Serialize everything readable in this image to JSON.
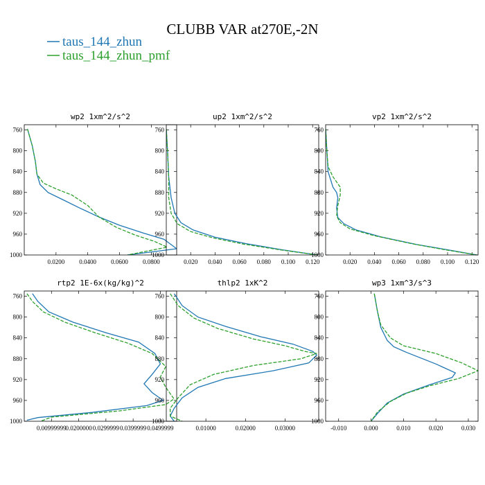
{
  "figure": {
    "title": "CLUBB VAR at270E,-2N",
    "legend": [
      {
        "label": "taus_144_zhun",
        "color": "#1f77b4",
        "dash": "solid"
      },
      {
        "label": "taus_144_zhun_pmf",
        "color": "#2ca02c",
        "dash": "dashed"
      }
    ]
  },
  "chart_data": [
    {
      "type": "line",
      "title": "wp2  1xm^2/s^2",
      "ylim": [
        1000,
        750
      ],
      "yticks": [
        760,
        800,
        840,
        880,
        920,
        960,
        1000
      ],
      "xlim": [
        0.0,
        0.096
      ],
      "xticks": [
        0.02,
        0.04,
        0.06,
        0.08
      ],
      "xtick_labels": [
        "0.0200",
        "0.0400",
        "0.0600",
        "0.0800"
      ],
      "series": [
        {
          "name": "taus_144_zhun",
          "color": "#1f77b4",
          "dash": "solid",
          "points": [
            [
              0.002,
              758
            ],
            [
              0.005,
              790
            ],
            [
              0.007,
              820
            ],
            [
              0.008,
              845
            ],
            [
              0.01,
              865
            ],
            [
              0.015,
              880
            ],
            [
              0.025,
              895
            ],
            [
              0.035,
              910
            ],
            [
              0.047,
              927
            ],
            [
              0.06,
              943
            ],
            [
              0.075,
              958
            ],
            [
              0.088,
              970
            ],
            [
              0.096,
              988
            ],
            [
              0.065,
              1000
            ]
          ]
        },
        {
          "name": "taus_144_zhun_pmf",
          "color": "#2ca02c",
          "dash": "dashed",
          "points": [
            [
              0.002,
              758
            ],
            [
              0.005,
              790
            ],
            [
              0.007,
              820
            ],
            [
              0.008,
              845
            ],
            [
              0.012,
              862
            ],
            [
              0.02,
              873
            ],
            [
              0.03,
              885
            ],
            [
              0.04,
              905
            ],
            [
              0.047,
              927
            ],
            [
              0.058,
              947
            ],
            [
              0.07,
              962
            ],
            [
              0.082,
              974
            ],
            [
              0.09,
              985
            ],
            [
              0.065,
              1000
            ]
          ]
        }
      ]
    },
    {
      "type": "line",
      "title": "up2  1xm^2/s^2",
      "ylim": [
        1000,
        750
      ],
      "yticks": [
        760,
        800,
        840,
        880,
        920,
        960,
        1000
      ],
      "xlim": [
        0.0,
        0.125
      ],
      "xticks": [
        0.02,
        0.04,
        0.06,
        0.08,
        0.1,
        0.12
      ],
      "xtick_labels": [
        "0.020",
        "0.040",
        "0.060",
        "0.080",
        "0.100",
        "0.120"
      ],
      "series": [
        {
          "name": "taus_144_zhun",
          "color": "#1f77b4",
          "dash": "solid",
          "points": [
            [
              0.0,
              758
            ],
            [
              0.001,
              800
            ],
            [
              0.002,
              850
            ],
            [
              0.004,
              890
            ],
            [
              0.007,
              920
            ],
            [
              0.012,
              938
            ],
            [
              0.022,
              952
            ],
            [
              0.04,
              966
            ],
            [
              0.065,
              978
            ],
            [
              0.095,
              990
            ],
            [
              0.124,
              1000
            ]
          ]
        },
        {
          "name": "taus_144_zhun_pmf",
          "color": "#2ca02c",
          "dash": "dashed",
          "points": [
            [
              0.0,
              758
            ],
            [
              0.001,
              800
            ],
            [
              0.002,
              850
            ],
            [
              0.002,
              890
            ],
            [
              0.004,
              920
            ],
            [
              0.009,
              940
            ],
            [
              0.02,
              955
            ],
            [
              0.038,
              967
            ],
            [
              0.063,
              979
            ],
            [
              0.093,
              990
            ],
            [
              0.124,
              1000
            ]
          ]
        }
      ]
    },
    {
      "type": "line",
      "title": "vp2  1xm^2/s^2",
      "ylim": [
        1000,
        750
      ],
      "yticks": [
        760,
        800,
        840,
        880,
        920,
        960,
        1000
      ],
      "xlim": [
        0.0,
        0.125
      ],
      "xticks": [
        0.02,
        0.04,
        0.06,
        0.08,
        0.1,
        0.12
      ],
      "xtick_labels": [
        "0.020",
        "0.040",
        "0.060",
        "0.080",
        "0.100",
        "0.120"
      ],
      "series": [
        {
          "name": "taus_144_zhun",
          "color": "#1f77b4",
          "dash": "solid",
          "points": [
            [
              0.0,
              758
            ],
            [
              0.001,
              800
            ],
            [
              0.002,
              840
            ],
            [
              0.006,
              870
            ],
            [
              0.009,
              880
            ],
            [
              0.01,
              890
            ],
            [
              0.009,
              910
            ],
            [
              0.01,
              928
            ],
            [
              0.015,
              940
            ],
            [
              0.025,
              952
            ],
            [
              0.045,
              965
            ],
            [
              0.075,
              980
            ],
            [
              0.1,
              990
            ],
            [
              0.124,
              1000
            ]
          ]
        },
        {
          "name": "taus_144_zhun_pmf",
          "color": "#2ca02c",
          "dash": "dashed",
          "points": [
            [
              0.0,
              758
            ],
            [
              0.001,
              800
            ],
            [
              0.002,
              830
            ],
            [
              0.006,
              850
            ],
            [
              0.012,
              870
            ],
            [
              0.012,
              885
            ],
            [
              0.01,
              905
            ],
            [
              0.009,
              925
            ],
            [
              0.012,
              938
            ],
            [
              0.02,
              950
            ],
            [
              0.04,
              963
            ],
            [
              0.07,
              978
            ],
            [
              0.098,
              990
            ],
            [
              0.124,
              1000
            ]
          ]
        }
      ]
    },
    {
      "type": "line",
      "title": "rtp2  1E-6x(kg/kg)^2",
      "ylim": [
        1000,
        750
      ],
      "yticks": [
        760,
        800,
        840,
        880,
        920,
        960,
        1000
      ],
      "xlim": [
        0.0,
        0.056
      ],
      "xticks": [
        0.01,
        0.02,
        0.03,
        0.04,
        0.05
      ],
      "xtick_labels": [
        "0.00999999",
        "0.0200000",
        "0.0299999",
        "0.0399999",
        "0.0499999"
      ],
      "series": [
        {
          "name": "taus_144_zhun",
          "color": "#1f77b4",
          "dash": "solid",
          "points": [
            [
              0.003,
              755
            ],
            [
              0.005,
              770
            ],
            [
              0.009,
              790
            ],
            [
              0.018,
              810
            ],
            [
              0.03,
              830
            ],
            [
              0.042,
              848
            ],
            [
              0.048,
              870
            ],
            [
              0.05,
              890
            ],
            [
              0.047,
              910
            ],
            [
              0.044,
              928
            ],
            [
              0.047,
              945
            ],
            [
              0.051,
              960
            ],
            [
              0.045,
              970
            ],
            [
              0.025,
              983
            ],
            [
              0.005,
              993
            ],
            [
              0.001,
              998
            ]
          ]
        },
        {
          "name": "taus_144_zhun_pmf",
          "color": "#2ca02c",
          "dash": "dashed",
          "points": [
            [
              0.001,
              755
            ],
            [
              0.003,
              770
            ],
            [
              0.007,
              790
            ],
            [
              0.015,
              810
            ],
            [
              0.026,
              830
            ],
            [
              0.038,
              850
            ],
            [
              0.047,
              870
            ],
            [
              0.052,
              895
            ],
            [
              0.05,
              915
            ],
            [
              0.052,
              935
            ],
            [
              0.055,
              957
            ],
            [
              0.052,
              968
            ],
            [
              0.035,
              980
            ],
            [
              0.01,
              992
            ],
            [
              0.006,
              1000
            ]
          ]
        }
      ]
    },
    {
      "type": "line",
      "title": "thlp2  1xK^2",
      "ylim": [
        1000,
        750
      ],
      "yticks": [
        760,
        800,
        840,
        880,
        920,
        960,
        1000
      ],
      "xlim": [
        0.0,
        0.0385
      ],
      "xticks": [
        0.01,
        0.02,
        0.03
      ],
      "xtick_labels": [
        "0.01000",
        "0.02000",
        "0.03000"
      ],
      "series": [
        {
          "name": "taus_144_zhun",
          "color": "#1f77b4",
          "dash": "solid",
          "points": [
            [
              0.002,
              755
            ],
            [
              0.004,
              778
            ],
            [
              0.008,
              800
            ],
            [
              0.015,
              818
            ],
            [
              0.024,
              838
            ],
            [
              0.032,
              852
            ],
            [
              0.037,
              866
            ],
            [
              0.038,
              873
            ],
            [
              0.036,
              888
            ],
            [
              0.027,
              903
            ],
            [
              0.015,
              918
            ],
            [
              0.008,
              935
            ],
            [
              0.004,
              955
            ],
            [
              0.002,
              975
            ],
            [
              0.001,
              990
            ],
            [
              0.002,
              1000
            ]
          ]
        },
        {
          "name": "taus_144_zhun_pmf",
          "color": "#2ca02c",
          "dash": "dashed",
          "points": [
            [
              0.001,
              755
            ],
            [
              0.003,
              778
            ],
            [
              0.007,
              802
            ],
            [
              0.013,
              822
            ],
            [
              0.022,
              842
            ],
            [
              0.03,
              855
            ],
            [
              0.035,
              866
            ],
            [
              0.038,
              870
            ],
            [
              0.034,
              880
            ],
            [
              0.022,
              893
            ],
            [
              0.012,
              910
            ],
            [
              0.006,
              930
            ],
            [
              0.003,
              955
            ],
            [
              0.001,
              975
            ],
            [
              0.001,
              990
            ],
            [
              0.004,
              1000
            ]
          ]
        }
      ]
    },
    {
      "type": "line",
      "title": "wp3  1xm^3/s^3",
      "ylim": [
        1000,
        750
      ],
      "yticks": [
        760,
        800,
        840,
        880,
        920,
        960,
        1000
      ],
      "xlim": [
        -0.014,
        0.033
      ],
      "xticks": [
        -0.01,
        0.0,
        0.01,
        0.02,
        0.03
      ],
      "xtick_labels": [
        "-0.010",
        "0.000",
        "0.010",
        "0.020",
        "0.030"
      ],
      "series": [
        {
          "name": "taus_144_zhun",
          "color": "#1f77b4",
          "dash": "solid",
          "points": [
            [
              0.001,
              755
            ],
            [
              0.002,
              790
            ],
            [
              0.003,
              820
            ],
            [
              0.005,
              845
            ],
            [
              0.007,
              857
            ],
            [
              0.011,
              868
            ],
            [
              0.02,
              890
            ],
            [
              0.026,
              907
            ],
            [
              0.025,
              916
            ],
            [
              0.018,
              930
            ],
            [
              0.01,
              948
            ],
            [
              0.005,
              965
            ],
            [
              0.002,
              985
            ],
            [
              0.0,
              1000
            ]
          ]
        },
        {
          "name": "taus_144_zhun_pmf",
          "color": "#2ca02c",
          "dash": "dashed",
          "points": [
            [
              0.001,
              755
            ],
            [
              0.002,
              790
            ],
            [
              0.003,
              815
            ],
            [
              0.006,
              840
            ],
            [
              0.01,
              855
            ],
            [
              0.02,
              870
            ],
            [
              0.028,
              888
            ],
            [
              0.033,
              903
            ],
            [
              0.027,
              918
            ],
            [
              0.018,
              932
            ],
            [
              0.011,
              946
            ],
            [
              0.006,
              962
            ],
            [
              0.002,
              982
            ],
            [
              0.0,
              1000
            ]
          ]
        }
      ]
    }
  ]
}
